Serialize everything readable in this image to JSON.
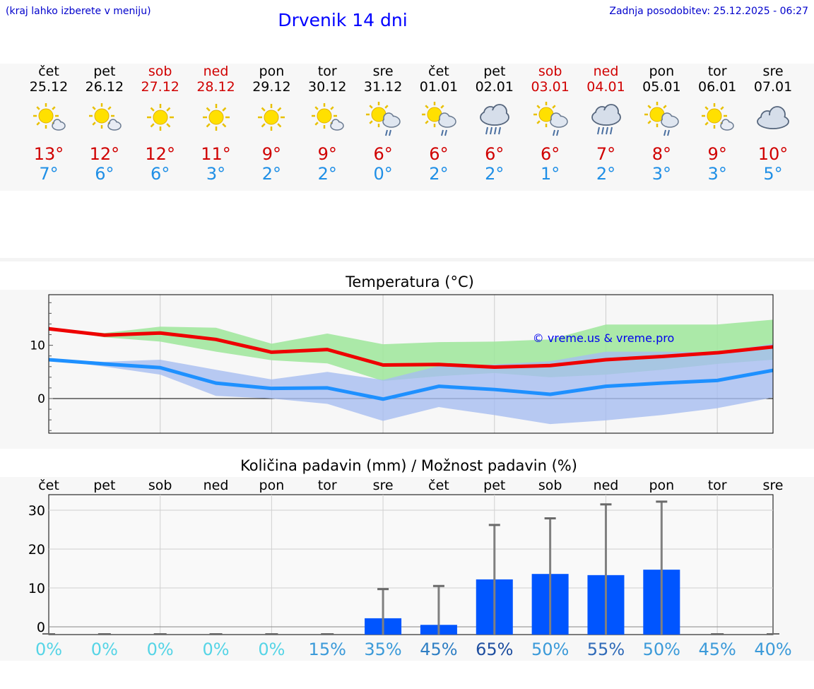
{
  "header": {
    "hint": "(kraj lahko izberete v meniju)",
    "title": "Drvenik 14 dni",
    "updated": "Zadnja posodobitev: 25.12.2025 - 06:27"
  },
  "days": [
    {
      "name": "čet",
      "date": "25.12",
      "weekend": false,
      "icon": "sun-cloud-icon",
      "tmax": "13°",
      "tmin": "7°"
    },
    {
      "name": "pet",
      "date": "26.12",
      "weekend": false,
      "icon": "sun-cloud-icon",
      "tmax": "12°",
      "tmin": "6°"
    },
    {
      "name": "sob",
      "date": "27.12",
      "weekend": true,
      "icon": "sun-icon",
      "tmax": "12°",
      "tmin": "6°"
    },
    {
      "name": "ned",
      "date": "28.12",
      "weekend": true,
      "icon": "sun-icon",
      "tmax": "11°",
      "tmin": "3°"
    },
    {
      "name": "pon",
      "date": "29.12",
      "weekend": false,
      "icon": "sun-icon",
      "tmax": "9°",
      "tmin": "2°"
    },
    {
      "name": "tor",
      "date": "30.12",
      "weekend": false,
      "icon": "sun-cloud-icon",
      "tmax": "9°",
      "tmin": "2°"
    },
    {
      "name": "sre",
      "date": "31.12",
      "weekend": false,
      "icon": "sun-cloud-rain-icon",
      "tmax": "6°",
      "tmin": "0°"
    },
    {
      "name": "čet",
      "date": "01.01",
      "weekend": false,
      "icon": "sun-cloud-rain-icon",
      "tmax": "6°",
      "tmin": "2°"
    },
    {
      "name": "pet",
      "date": "02.01",
      "weekend": false,
      "icon": "cloud-rain-icon",
      "tmax": "6°",
      "tmin": "2°"
    },
    {
      "name": "sob",
      "date": "03.01",
      "weekend": true,
      "icon": "sun-cloud-rain-icon",
      "tmax": "6°",
      "tmin": "1°"
    },
    {
      "name": "ned",
      "date": "04.01",
      "weekend": true,
      "icon": "cloud-rain-icon",
      "tmax": "7°",
      "tmin": "2°"
    },
    {
      "name": "pon",
      "date": "05.01",
      "weekend": false,
      "icon": "sun-cloud-rain-icon",
      "tmax": "8°",
      "tmin": "3°"
    },
    {
      "name": "tor",
      "date": "06.01",
      "weekend": false,
      "icon": "sun-cloud-icon",
      "tmax": "9°",
      "tmin": "3°"
    },
    {
      "name": "sre",
      "date": "07.01",
      "weekend": false,
      "icon": "cloud-icon",
      "tmax": "10°",
      "tmin": "5°"
    }
  ],
  "colors": {
    "max_line": "#ee0000",
    "min_line": "#1e90ff",
    "max_band": "#9ee69a",
    "min_band": "#a6bdf0",
    "bar": "#0055ff",
    "whisker": "#808080",
    "title_blue": "#0000ff",
    "weekend_red": "#d00000",
    "sun": "#ffe000",
    "cloud": "#d0d8e8"
  },
  "chart_data": [
    {
      "type": "line",
      "title": "Temperatura (°C)",
      "watermark": "© vreme.us & vreme.pro",
      "ylim": [
        -6.5,
        19.5
      ],
      "yticks": [
        0,
        10
      ],
      "x": [
        0,
        1,
        2,
        3,
        4,
        5,
        6,
        7,
        8,
        9,
        10,
        11,
        12,
        13
      ],
      "series": [
        {
          "name": "max",
          "values": [
            13.1,
            11.9,
            12.3,
            11.1,
            8.7,
            9.2,
            6.3,
            6.4,
            5.9,
            6.2,
            7.3,
            7.9,
            8.6,
            9.7
          ]
        },
        {
          "name": "min",
          "values": [
            7.3,
            6.5,
            5.8,
            2.9,
            1.9,
            2.0,
            -0.1,
            2.3,
            1.7,
            0.8,
            2.3,
            2.9,
            3.4,
            5.3
          ]
        }
      ],
      "bands": [
        {
          "name": "max_range_low",
          "values": [
            13.1,
            11.5,
            10.7,
            8.8,
            7.2,
            6.6,
            3.3,
            4.2,
            4.8,
            4.0,
            4.5,
            5.4,
            6.5,
            7.3
          ]
        },
        {
          "name": "max_range_high",
          "values": [
            13.1,
            12.3,
            13.5,
            13.3,
            10.3,
            12.2,
            10.2,
            10.6,
            10.7,
            11.1,
            13.9,
            13.9,
            13.9,
            14.8
          ]
        },
        {
          "name": "min_range_low",
          "values": [
            7.3,
            6.0,
            4.5,
            0.5,
            0.0,
            -1.0,
            -4.2,
            -1.6,
            -3.1,
            -4.8,
            -4.1,
            -3.1,
            -1.8,
            0.2
          ]
        },
        {
          "name": "min_range_high",
          "values": [
            7.3,
            6.9,
            7.3,
            5.4,
            3.6,
            5.0,
            3.5,
            6.1,
            6.4,
            7.0,
            8.8,
            8.8,
            8.7,
            10.3
          ]
        }
      ]
    },
    {
      "type": "bar",
      "title": "Količina padavin (mm) / Možnost padavin (%)",
      "ylim": [
        -2,
        34
      ],
      "yticks": [
        0,
        10,
        20,
        30
      ],
      "categories": [
        "čet",
        "pet",
        "sob",
        "ned",
        "pon",
        "tor",
        "sre",
        "čet",
        "pet",
        "sob",
        "ned",
        "pon",
        "tor",
        "sre"
      ],
      "values": [
        0,
        0,
        0,
        0,
        0,
        0,
        2.2,
        0.5,
        12.2,
        13.6,
        13.3,
        14.7,
        0,
        0
      ],
      "max_values": [
        0,
        0,
        0,
        0,
        0,
        0,
        9.7,
        10.5,
        26.2,
        27.9,
        31.5,
        32.2,
        0,
        0
      ],
      "probabilities": [
        "0%",
        "0%",
        "0%",
        "0%",
        "0%",
        "15%",
        "35%",
        "45%",
        "65%",
        "50%",
        "55%",
        "50%",
        "45%",
        "40%"
      ],
      "probability_colors": [
        "#55d4e6",
        "#55d4e6",
        "#55d4e6",
        "#55d4e6",
        "#55d4e6",
        "#3b9ad9",
        "#3b9ad9",
        "#2f7fc4",
        "#1f4fa0",
        "#3b9ad9",
        "#2f6ab8",
        "#3b9ad9",
        "#3b9ad9",
        "#3b9ad9"
      ]
    }
  ]
}
